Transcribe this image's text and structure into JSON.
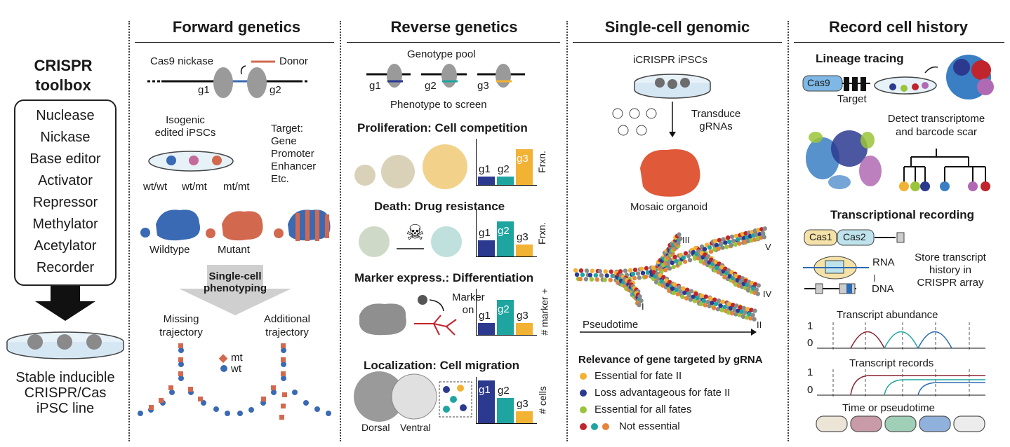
{
  "toolbox": {
    "title": "CRISPR toolbox",
    "items": [
      "Nuclease",
      "Nickase",
      "Base editor",
      "Activator",
      "Repressor",
      "Methylator",
      "Acetylator",
      "Recorder"
    ],
    "line_label": "Stable inducible CRISPR/Cas iPSC line"
  },
  "forward": {
    "title": "Forward genetics",
    "cas9": "Cas9 nickase",
    "donor": "Donor",
    "g1": "g1",
    "g2": "g2",
    "isogenic": "Isogenic edited iPSCs",
    "target_label": "Target:",
    "targets": [
      "Gene",
      "Promoter",
      "Enhancer",
      "Etc."
    ],
    "genotypes": [
      "wt/wt",
      "wt/mt",
      "mt/mt"
    ],
    "wildtype": "Wildtype",
    "mutant": "Mutant",
    "phenotyping": "Single-cell phenotyping",
    "missing": "Missing trajectory",
    "additional": "Additional trajectory",
    "legend_mt": "mt",
    "legend_wt": "wt"
  },
  "reverse": {
    "title": "Reverse genetics",
    "pool": "Genotype pool",
    "pool_g": [
      "g1",
      "g2",
      "g3"
    ],
    "screen": "Phenotype to screen",
    "panels": [
      {
        "title": "Proliferation: Cell competition",
        "axis": "Frxn.",
        "values": [
          0.18,
          0.18,
          0.78
        ]
      },
      {
        "title": "Death: Drug resistance",
        "axis": "Frxn.",
        "values": [
          0.35,
          0.75,
          0.25
        ]
      },
      {
        "title": "Marker express.: Differentiation",
        "axis": "# marker +",
        "values": [
          0.25,
          0.75,
          0.25
        ],
        "marker": "Marker on"
      },
      {
        "title": "Localization: Cell migration",
        "axis": "# cells",
        "values": [
          0.92,
          0.55,
          0.25
        ],
        "dorsal": "Dorsal",
        "ventral": "Ventral"
      }
    ],
    "bar_labels": [
      "g1",
      "g2",
      "g3"
    ]
  },
  "single_cell": {
    "title": "Single-cell genomic",
    "ipsc": "iCRISPR iPSCs",
    "transduce": "Transduce gRNAs",
    "mosaic": "Mosaic organoid",
    "fates": [
      "I",
      "II",
      "III",
      "IV",
      "V"
    ],
    "pseudotime": "Pseudotime",
    "relevance_title": "Relevance of gene targeted by gRNA",
    "legend": [
      {
        "label": "Essential for fate II",
        "color": "#f2b233"
      },
      {
        "label": "Loss advantageous for fate II",
        "color": "#2b3a8f"
      },
      {
        "label": "Essential for all fates",
        "color": "#9ac43a"
      },
      {
        "label": "Not essential",
        "colors": [
          "#c0242c",
          "#1fa5a0",
          "#e8833a"
        ]
      }
    ]
  },
  "record": {
    "title": "Record cell history",
    "lineage": "Lineage tracing",
    "cas9": "Cas9",
    "target": "Target",
    "detect": "Detect transcriptome and barcode scar",
    "transcriptional": "Transcriptional recording",
    "cas1": "Cas1",
    "cas2": "Cas2",
    "rna": "RNA",
    "dna": "DNA",
    "store": "Store transcript history in CRISPR array",
    "abundance": "Transcript abundance",
    "records": "Transcript records",
    "axis_one": "1",
    "axis_zero": "0",
    "time": "Time or pseudotime",
    "leaf_colors": [
      "#f2b233",
      "#9ac43a",
      "#2b3a8f",
      "#3a7fc4",
      "#b06ab3",
      "#c0242c"
    ]
  },
  "colors": {
    "bar_blue": "#2b3a8f",
    "bar_teal": "#1fa5a0",
    "bar_yellow": "#f2b233",
    "mt": "#d2694f",
    "wt": "#3a6ab3",
    "arrow_gray": "#cfcfcf"
  }
}
